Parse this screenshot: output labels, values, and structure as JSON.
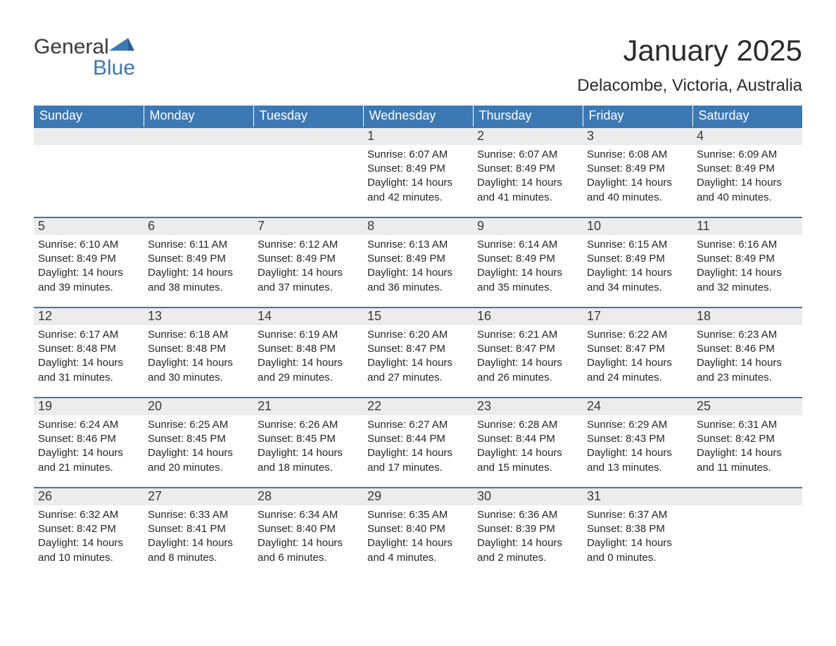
{
  "logo": {
    "brand_a": "General",
    "brand_b": "Blue"
  },
  "title": "January 2025",
  "location": "Delacombe, Victoria, Australia",
  "colors": {
    "header_bg": "#3c78b4",
    "header_text": "#ffffff",
    "day_header_bg": "#ececec",
    "day_header_border": "#3c78b4",
    "body_text": "#262626",
    "page_bg": "#ffffff"
  },
  "typography": {
    "title_fontsize": 42,
    "location_fontsize": 24,
    "weekday_fontsize": 18,
    "daynum_fontsize": 18,
    "body_fontsize": 15
  },
  "weekdays": [
    "Sunday",
    "Monday",
    "Tuesday",
    "Wednesday",
    "Thursday",
    "Friday",
    "Saturday"
  ],
  "weeks": [
    [
      {
        "n": "",
        "sr": "",
        "ss": "",
        "dl": ""
      },
      {
        "n": "",
        "sr": "",
        "ss": "",
        "dl": ""
      },
      {
        "n": "",
        "sr": "",
        "ss": "",
        "dl": ""
      },
      {
        "n": "1",
        "sr": "Sunrise: 6:07 AM",
        "ss": "Sunset: 8:49 PM",
        "dl": "Daylight: 14 hours and 42 minutes."
      },
      {
        "n": "2",
        "sr": "Sunrise: 6:07 AM",
        "ss": "Sunset: 8:49 PM",
        "dl": "Daylight: 14 hours and 41 minutes."
      },
      {
        "n": "3",
        "sr": "Sunrise: 6:08 AM",
        "ss": "Sunset: 8:49 PM",
        "dl": "Daylight: 14 hours and 40 minutes."
      },
      {
        "n": "4",
        "sr": "Sunrise: 6:09 AM",
        "ss": "Sunset: 8:49 PM",
        "dl": "Daylight: 14 hours and 40 minutes."
      }
    ],
    [
      {
        "n": "5",
        "sr": "Sunrise: 6:10 AM",
        "ss": "Sunset: 8:49 PM",
        "dl": "Daylight: 14 hours and 39 minutes."
      },
      {
        "n": "6",
        "sr": "Sunrise: 6:11 AM",
        "ss": "Sunset: 8:49 PM",
        "dl": "Daylight: 14 hours and 38 minutes."
      },
      {
        "n": "7",
        "sr": "Sunrise: 6:12 AM",
        "ss": "Sunset: 8:49 PM",
        "dl": "Daylight: 14 hours and 37 minutes."
      },
      {
        "n": "8",
        "sr": "Sunrise: 6:13 AM",
        "ss": "Sunset: 8:49 PM",
        "dl": "Daylight: 14 hours and 36 minutes."
      },
      {
        "n": "9",
        "sr": "Sunrise: 6:14 AM",
        "ss": "Sunset: 8:49 PM",
        "dl": "Daylight: 14 hours and 35 minutes."
      },
      {
        "n": "10",
        "sr": "Sunrise: 6:15 AM",
        "ss": "Sunset: 8:49 PM",
        "dl": "Daylight: 14 hours and 34 minutes."
      },
      {
        "n": "11",
        "sr": "Sunrise: 6:16 AM",
        "ss": "Sunset: 8:49 PM",
        "dl": "Daylight: 14 hours and 32 minutes."
      }
    ],
    [
      {
        "n": "12",
        "sr": "Sunrise: 6:17 AM",
        "ss": "Sunset: 8:48 PM",
        "dl": "Daylight: 14 hours and 31 minutes."
      },
      {
        "n": "13",
        "sr": "Sunrise: 6:18 AM",
        "ss": "Sunset: 8:48 PM",
        "dl": "Daylight: 14 hours and 30 minutes."
      },
      {
        "n": "14",
        "sr": "Sunrise: 6:19 AM",
        "ss": "Sunset: 8:48 PM",
        "dl": "Daylight: 14 hours and 29 minutes."
      },
      {
        "n": "15",
        "sr": "Sunrise: 6:20 AM",
        "ss": "Sunset: 8:47 PM",
        "dl": "Daylight: 14 hours and 27 minutes."
      },
      {
        "n": "16",
        "sr": "Sunrise: 6:21 AM",
        "ss": "Sunset: 8:47 PM",
        "dl": "Daylight: 14 hours and 26 minutes."
      },
      {
        "n": "17",
        "sr": "Sunrise: 6:22 AM",
        "ss": "Sunset: 8:47 PM",
        "dl": "Daylight: 14 hours and 24 minutes."
      },
      {
        "n": "18",
        "sr": "Sunrise: 6:23 AM",
        "ss": "Sunset: 8:46 PM",
        "dl": "Daylight: 14 hours and 23 minutes."
      }
    ],
    [
      {
        "n": "19",
        "sr": "Sunrise: 6:24 AM",
        "ss": "Sunset: 8:46 PM",
        "dl": "Daylight: 14 hours and 21 minutes."
      },
      {
        "n": "20",
        "sr": "Sunrise: 6:25 AM",
        "ss": "Sunset: 8:45 PM",
        "dl": "Daylight: 14 hours and 20 minutes."
      },
      {
        "n": "21",
        "sr": "Sunrise: 6:26 AM",
        "ss": "Sunset: 8:45 PM",
        "dl": "Daylight: 14 hours and 18 minutes."
      },
      {
        "n": "22",
        "sr": "Sunrise: 6:27 AM",
        "ss": "Sunset: 8:44 PM",
        "dl": "Daylight: 14 hours and 17 minutes."
      },
      {
        "n": "23",
        "sr": "Sunrise: 6:28 AM",
        "ss": "Sunset: 8:44 PM",
        "dl": "Daylight: 14 hours and 15 minutes."
      },
      {
        "n": "24",
        "sr": "Sunrise: 6:29 AM",
        "ss": "Sunset: 8:43 PM",
        "dl": "Daylight: 14 hours and 13 minutes."
      },
      {
        "n": "25",
        "sr": "Sunrise: 6:31 AM",
        "ss": "Sunset: 8:42 PM",
        "dl": "Daylight: 14 hours and 11 minutes."
      }
    ],
    [
      {
        "n": "26",
        "sr": "Sunrise: 6:32 AM",
        "ss": "Sunset: 8:42 PM",
        "dl": "Daylight: 14 hours and 10 minutes."
      },
      {
        "n": "27",
        "sr": "Sunrise: 6:33 AM",
        "ss": "Sunset: 8:41 PM",
        "dl": "Daylight: 14 hours and 8 minutes."
      },
      {
        "n": "28",
        "sr": "Sunrise: 6:34 AM",
        "ss": "Sunset: 8:40 PM",
        "dl": "Daylight: 14 hours and 6 minutes."
      },
      {
        "n": "29",
        "sr": "Sunrise: 6:35 AM",
        "ss": "Sunset: 8:40 PM",
        "dl": "Daylight: 14 hours and 4 minutes."
      },
      {
        "n": "30",
        "sr": "Sunrise: 6:36 AM",
        "ss": "Sunset: 8:39 PM",
        "dl": "Daylight: 14 hours and 2 minutes."
      },
      {
        "n": "31",
        "sr": "Sunrise: 6:37 AM",
        "ss": "Sunset: 8:38 PM",
        "dl": "Daylight: 14 hours and 0 minutes."
      },
      {
        "n": "",
        "sr": "",
        "ss": "",
        "dl": ""
      }
    ]
  ]
}
